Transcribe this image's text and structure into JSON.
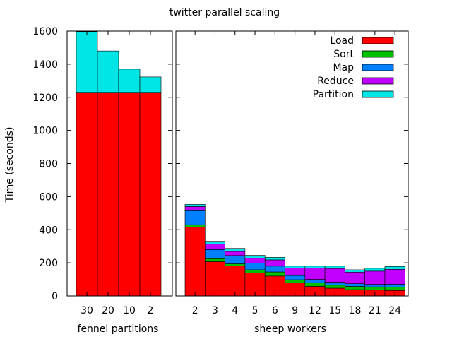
{
  "chart_data": {
    "type": "bar",
    "stacked": true,
    "title": "twitter parallel scaling",
    "ylabel": "Time (seconds)",
    "ylim": [
      0,
      1600
    ],
    "yticks": [
      0,
      200,
      400,
      600,
      800,
      1000,
      1200,
      1400,
      1600
    ],
    "grid": false,
    "legend_position": "top-right",
    "panels": [
      {
        "xlabel": "fennel partitions",
        "categories": [
          "30",
          "20",
          "10",
          "2"
        ],
        "series": [
          {
            "name": "Load",
            "color": "#ff0000",
            "values": [
              1230,
              1230,
              1230,
              1230
            ]
          },
          {
            "name": "Partition",
            "color": "#00e6e6",
            "values": [
              367,
              250,
              140,
              93
            ]
          }
        ]
      },
      {
        "xlabel": "sheep workers",
        "categories": [
          "2",
          "3",
          "4",
          "5",
          "6",
          "9",
          "12",
          "15",
          "18",
          "21",
          "24"
        ],
        "series": [
          {
            "name": "Load",
            "color": "#ff0000",
            "values": [
              415,
              207,
              182,
              138,
              120,
              78,
              58,
              47,
              38,
              35,
              33
            ]
          },
          {
            "name": "Sort",
            "color": "#00c000",
            "values": [
              15,
              18,
              12,
              20,
              25,
              20,
              22,
              18,
              20,
              20,
              20
            ]
          },
          {
            "name": "Map",
            "color": "#0080ff",
            "values": [
              85,
              55,
              50,
              40,
              35,
              25,
              20,
              18,
              16,
              15,
              18
            ]
          },
          {
            "name": "Reduce",
            "color": "#c000ff",
            "values": [
              25,
              33,
              25,
              30,
              38,
              45,
              68,
              83,
              70,
              80,
              90
            ]
          },
          {
            "name": "Partition",
            "color": "#00e6e6",
            "values": [
              13,
              17,
              18,
              17,
              15,
              12,
              12,
              14,
              14,
              17,
              17
            ]
          }
        ]
      }
    ]
  }
}
